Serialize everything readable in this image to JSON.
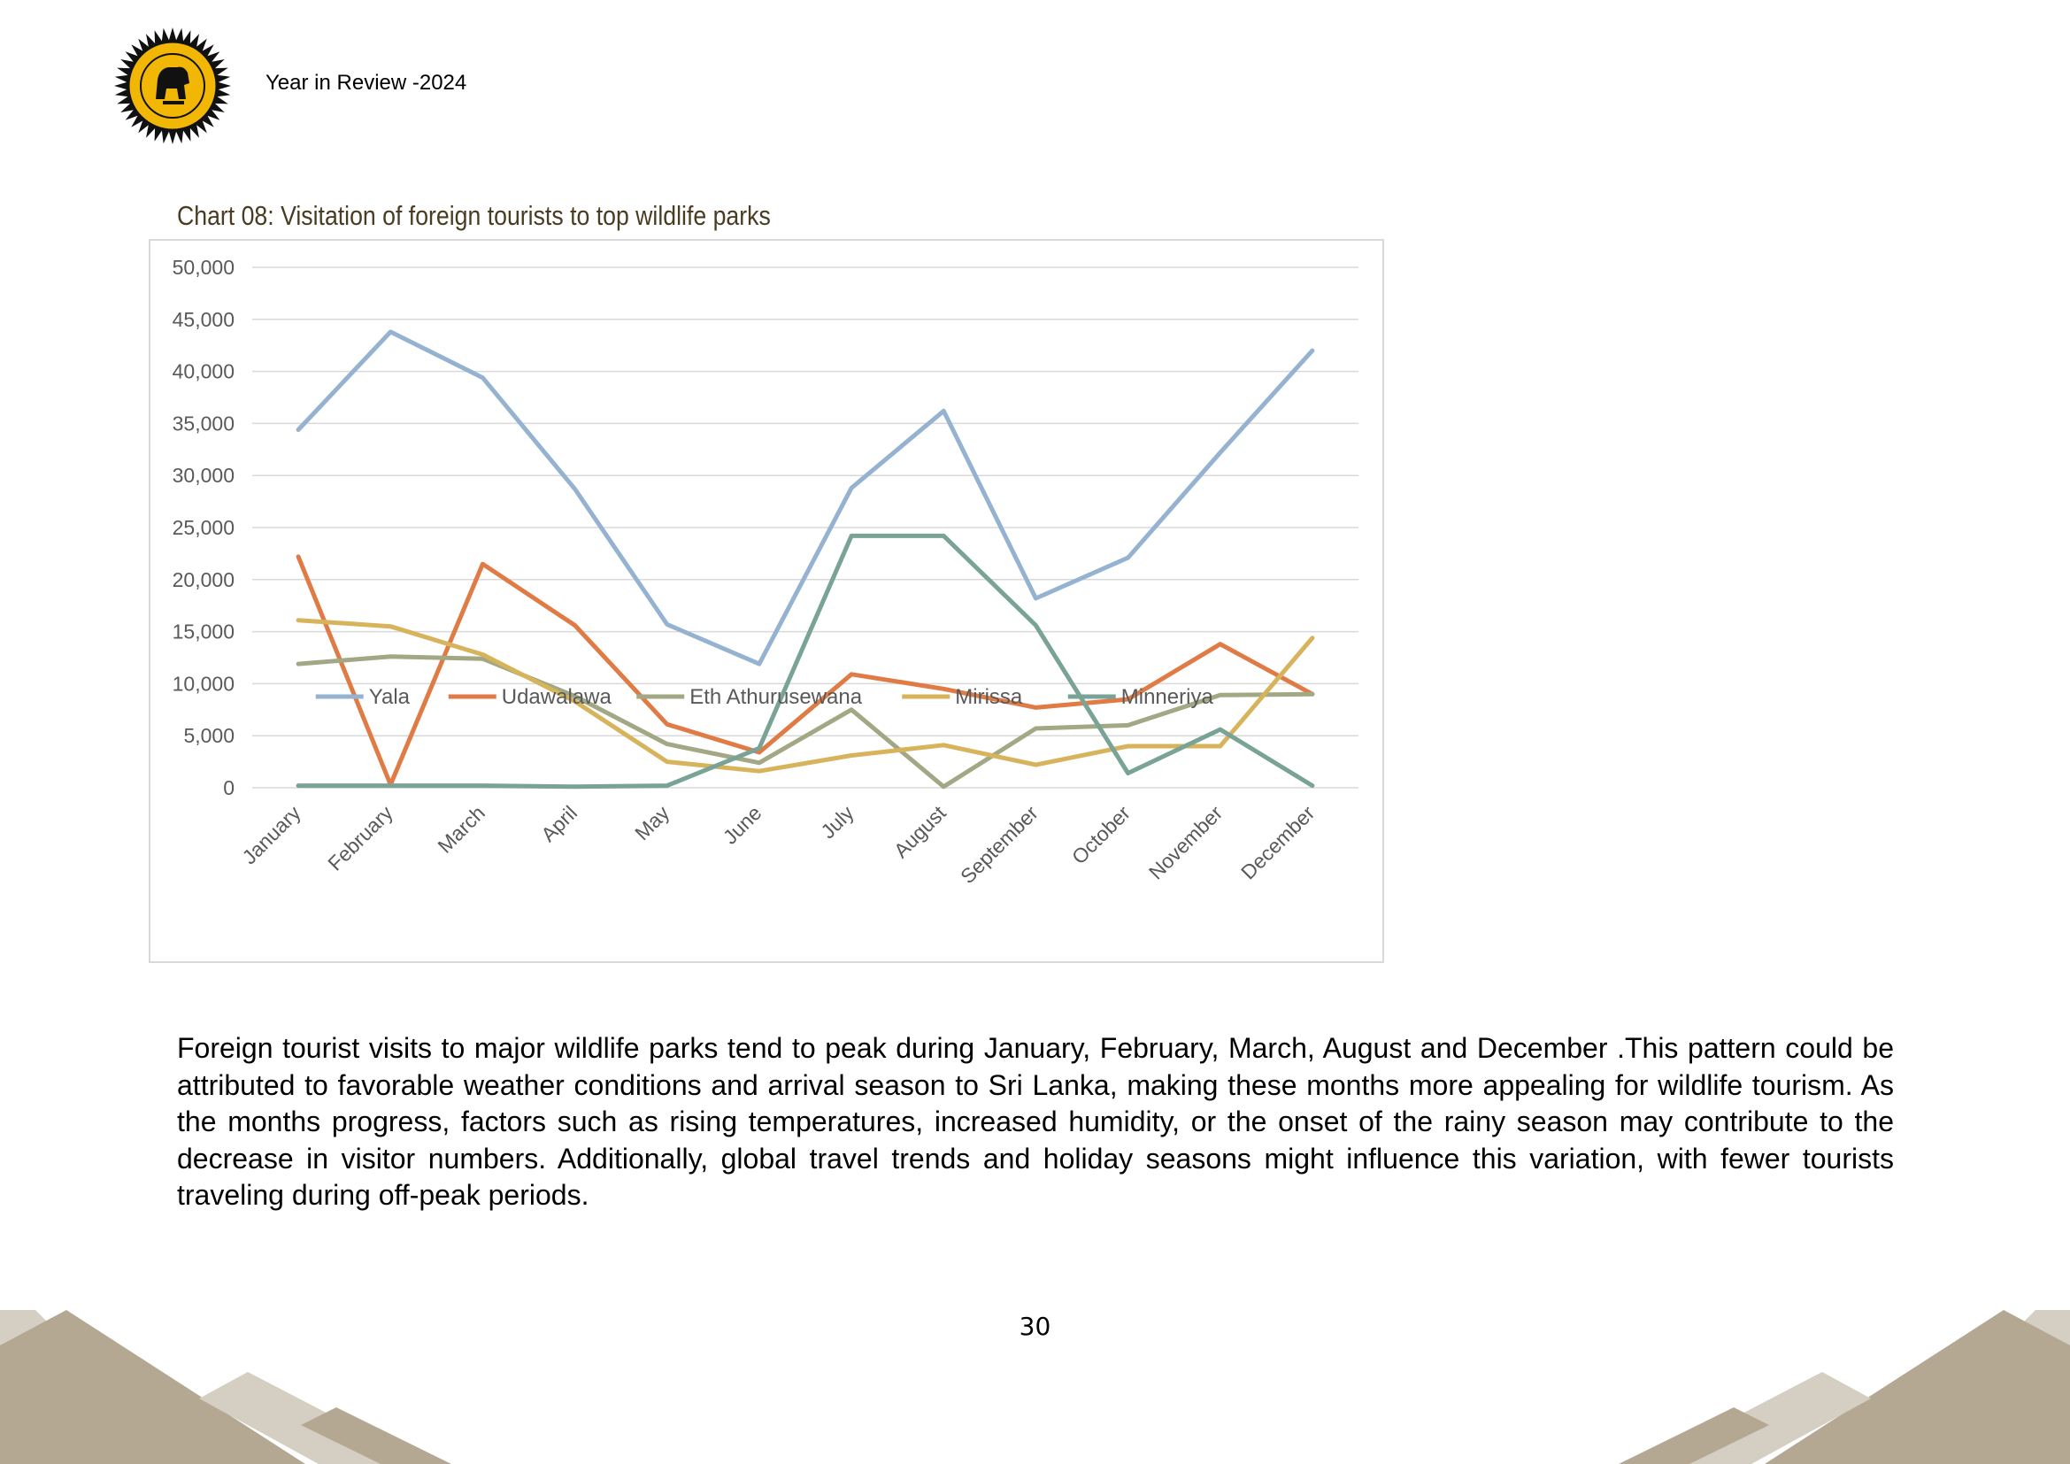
{
  "header": {
    "text": "Year in Review -2024",
    "logo_icon": "sri-lanka-tourism-seal"
  },
  "chart": {
    "caption": "Chart 08: Visitation of foreign tourists to top wildlife parks"
  },
  "chart_data": {
    "type": "line",
    "categories": [
      "January",
      "February",
      "March",
      "April",
      "May",
      "June",
      "July",
      "August",
      "September",
      "October",
      "November",
      "December"
    ],
    "y_ticks": [
      "0",
      "5,000",
      "10,000",
      "15,000",
      "20,000",
      "25,000",
      "30,000",
      "35,000",
      "40,000",
      "45,000",
      "50,000"
    ],
    "ylim": [
      0,
      50000
    ],
    "grid": true,
    "legend_position": "bottom",
    "series": [
      {
        "name": "Yala",
        "color": "#95b3d0",
        "values": [
          34400,
          43800,
          39400,
          28700,
          15700,
          11900,
          28800,
          36200,
          18200,
          22100,
          32200,
          42000
        ]
      },
      {
        "name": "Udawalawa",
        "color": "#e07b45",
        "values": [
          22200,
          300,
          21500,
          15600,
          6100,
          3400,
          10900,
          9500,
          7700,
          8500,
          13800,
          9000
        ]
      },
      {
        "name": "Eth Athurusewana",
        "color": "#a2a884",
        "values": [
          11900,
          12600,
          12400,
          8800,
          4200,
          2400,
          7500,
          100,
          5700,
          6000,
          8900,
          9000
        ]
      },
      {
        "name": "Mirissa",
        "color": "#d7b35b",
        "values": [
          16100,
          15500,
          12800,
          8300,
          2500,
          1600,
          3100,
          4100,
          2200,
          4000,
          4000,
          14400
        ]
      },
      {
        "name": "Minneriya",
        "color": "#79a396",
        "values": [
          200,
          200,
          200,
          100,
          200,
          3800,
          24200,
          24200,
          15600,
          1400,
          5600,
          200
        ]
      }
    ]
  },
  "body": {
    "paragraph": "Foreign tourist visits to major wildlife parks tend to peak during January, February,  March, August and December .This pattern could be attributed to favorable weather conditions and arrival season to Sri Lanka, making these months more appealing for wildlife tourism. As the months progress, factors such as rising temperatures, increased humidity, or the onset of the rainy season may contribute to the decrease in visitor numbers. Additionally, global travel trends and holiday seasons might influence this variation, with fewer tourists traveling during off-peak periods."
  },
  "footer": {
    "page_number": "30"
  }
}
